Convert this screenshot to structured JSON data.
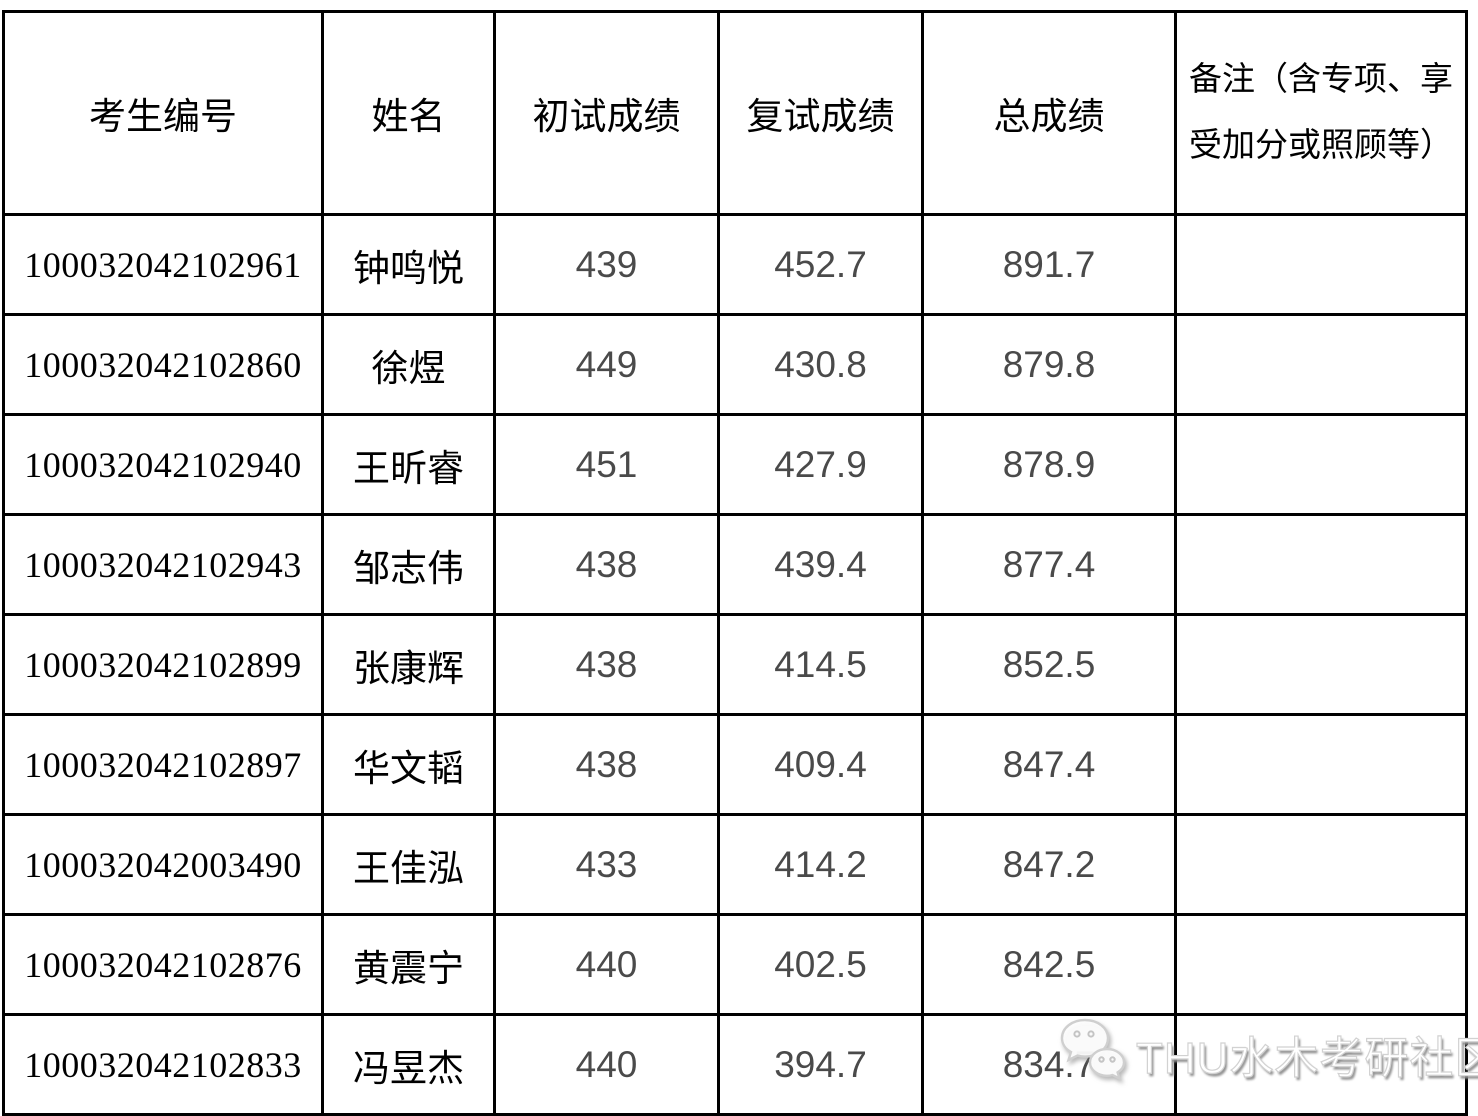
{
  "table": {
    "headers": [
      "考生编号",
      "姓名",
      "初试成绩",
      "复试成绩",
      "总成绩",
      "备注（含专项、享受加分或照顾等）"
    ],
    "rows": [
      {
        "id": "100032042102961",
        "name": "钟鸣悦",
        "initial": "439",
        "retest": "452.7",
        "total": "891.7",
        "remark": ""
      },
      {
        "id": "100032042102860",
        "name": "徐煜",
        "initial": "449",
        "retest": "430.8",
        "total": "879.8",
        "remark": ""
      },
      {
        "id": "100032042102940",
        "name": "王昕睿",
        "initial": "451",
        "retest": "427.9",
        "total": "878.9",
        "remark": ""
      },
      {
        "id": "100032042102943",
        "name": "邹志伟",
        "initial": "438",
        "retest": "439.4",
        "total": "877.4",
        "remark": ""
      },
      {
        "id": "100032042102899",
        "name": "张康辉",
        "initial": "438",
        "retest": "414.5",
        "total": "852.5",
        "remark": ""
      },
      {
        "id": "100032042102897",
        "name": "华文韬",
        "initial": "438",
        "retest": "409.4",
        "total": "847.4",
        "remark": ""
      },
      {
        "id": "100032042003490",
        "name": "王佳泓",
        "initial": "433",
        "retest": "414.2",
        "total": "847.2",
        "remark": ""
      },
      {
        "id": "100032042102876",
        "name": "黄震宁",
        "initial": "440",
        "retest": "402.5",
        "total": "842.5",
        "remark": ""
      },
      {
        "id": "100032042102833",
        "name": "冯昱杰",
        "initial": "440",
        "retest": "394.7",
        "total": "834.7",
        "remark": ""
      }
    ]
  },
  "watermark": {
    "icon": "wechat-icon",
    "text": "THU水木考研社区"
  },
  "colors": {
    "border": "#000000",
    "text": "#000000",
    "score_text": "#4a4a4a",
    "watermark_text": "#ffffff",
    "watermark_shadow": "#8f8f8f"
  }
}
